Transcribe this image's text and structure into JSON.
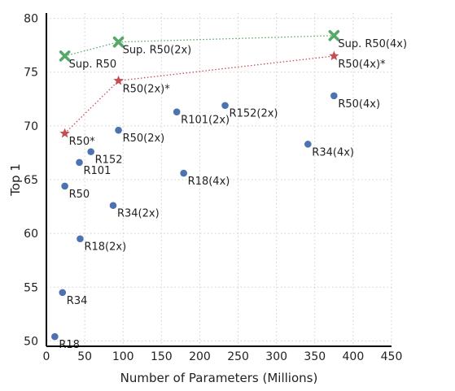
{
  "chart_data": {
    "type": "scatter",
    "title": "",
    "xlabel": "Number of Parameters (Millions)",
    "ylabel": "Top 1",
    "xlim": [
      0,
      450
    ],
    "ylim": [
      49.5,
      80.5
    ],
    "xticks": [
      0,
      50,
      100,
      150,
      200,
      250,
      300,
      350,
      400,
      450
    ],
    "yticks": [
      50,
      55,
      60,
      65,
      70,
      75,
      80
    ],
    "grid": true,
    "colors": {
      "baseline": "#4c72b0",
      "selfsup": "#c44e52",
      "supervised": "#55a868"
    },
    "series": [
      {
        "marker": "circle",
        "color": "#4c72b0",
        "connected": false,
        "points": [
          {
            "label": "R18",
            "x": 11,
            "y": 50.4
          },
          {
            "label": "R34",
            "x": 21,
            "y": 54.5
          },
          {
            "label": "R50",
            "x": 24,
            "y": 64.4
          },
          {
            "label": "R101",
            "x": 43,
            "y": 66.6
          },
          {
            "label": "R152",
            "x": 58,
            "y": 67.6
          },
          {
            "label": "R18(2x)",
            "x": 44,
            "y": 59.5
          },
          {
            "label": "R34(2x)",
            "x": 87,
            "y": 62.6
          },
          {
            "label": "R50(2x)",
            "x": 94,
            "y": 69.6
          },
          {
            "label": "R101(2x)",
            "x": 170,
            "y": 71.3
          },
          {
            "label": "R152(2x)",
            "x": 233,
            "y": 71.9
          },
          {
            "label": "R18(4x)",
            "x": 179,
            "y": 65.6
          },
          {
            "label": "R34(4x)",
            "x": 341,
            "y": 68.3
          },
          {
            "label": "R50(4x)",
            "x": 375,
            "y": 72.8
          }
        ]
      },
      {
        "marker": "star",
        "color": "#c44e52",
        "connected": true,
        "points": [
          {
            "label": "R50*",
            "x": 24,
            "y": 69.3
          },
          {
            "label": "R50(2x)*",
            "x": 94,
            "y": 74.2
          },
          {
            "label": "R50(4x)*",
            "x": 375,
            "y": 76.5
          }
        ]
      },
      {
        "marker": "x",
        "color": "#55a868",
        "connected": true,
        "points": [
          {
            "label": "Sup. R50",
            "x": 24,
            "y": 76.5
          },
          {
            "label": "Sup. R50(2x)",
            "x": 94,
            "y": 77.8
          },
          {
            "label": "Sup. R50(4x)",
            "x": 375,
            "y": 78.4
          }
        ]
      }
    ]
  }
}
